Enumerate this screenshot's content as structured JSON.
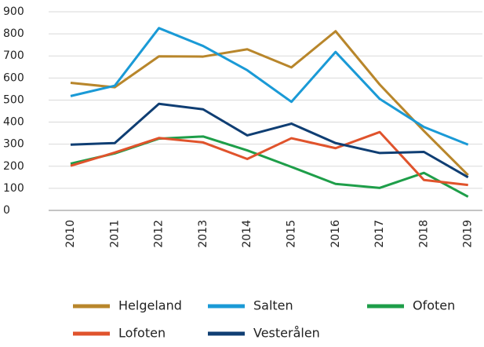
{
  "chart_data": {
    "type": "line",
    "categories": [
      "2010",
      "2011",
      "2012",
      "2013",
      "2014",
      "2015",
      "2016",
      "2017",
      "2018",
      "2019"
    ],
    "series": [
      {
        "name": "Helgeland",
        "color": "#b8862b",
        "values": [
          578,
          558,
          698,
          697,
          730,
          648,
          812,
          570,
          360,
          160
        ]
      },
      {
        "name": "Salten",
        "color": "#1a9ad6",
        "values": [
          518,
          565,
          826,
          745,
          635,
          492,
          718,
          505,
          378,
          298
        ]
      },
      {
        "name": "Ofoten",
        "color": "#1e9e49",
        "values": [
          212,
          258,
          325,
          335,
          272,
          197,
          120,
          102,
          170,
          62
        ]
      },
      {
        "name": "Lofoten",
        "color": "#e0532c",
        "values": [
          202,
          262,
          328,
          308,
          233,
          327,
          282,
          355,
          138,
          115
        ]
      },
      {
        "name": "Vesterålen",
        "color": "#0f3e73",
        "values": [
          298,
          305,
          483,
          458,
          340,
          393,
          305,
          260,
          265,
          150
        ]
      }
    ],
    "ylim": [
      0,
      900
    ],
    "yticks": [
      0,
      100,
      200,
      300,
      400,
      500,
      600,
      700,
      800,
      900
    ],
    "grid": true,
    "legend": "bottom"
  }
}
